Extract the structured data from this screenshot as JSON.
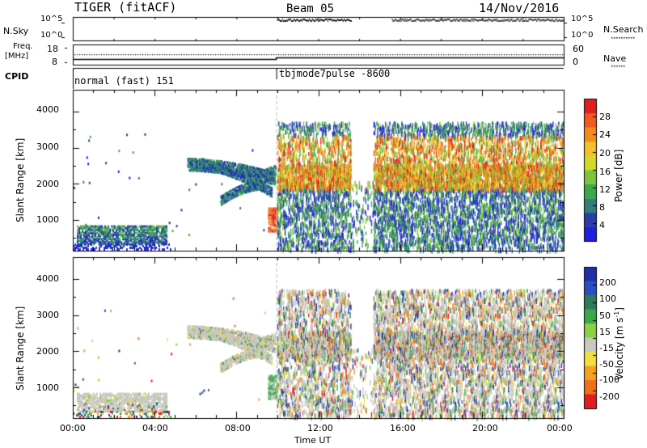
{
  "header": {
    "radar": "TIGER (fitACF)",
    "beam": "Beam 05",
    "date": "14/Nov/2016"
  },
  "top_panels": {
    "nsky_label": "N.Sky",
    "nsearch_label": "N.Search",
    "noise_ticks": [
      "10^5",
      "10^0"
    ],
    "freq_label": "Freq.",
    "freq_unit": "[MHz]",
    "freq_ticks": [
      "18",
      "8"
    ],
    "nave_label": "Nave",
    "nave_ticks": [
      "60",
      "0"
    ],
    "cpid_label": "CPID",
    "cpid_segments": [
      "normal (fast) 151",
      "tbjmode7pulse  -8600"
    ]
  },
  "chart_data": [
    {
      "type": "heatmap",
      "name": "power",
      "ylabel": "Slant Range [km]",
      "ylim": [
        150,
        4600
      ],
      "yticks": [
        1000,
        2000,
        3000,
        4000
      ],
      "xlim": [
        0,
        24
      ],
      "xticks": [
        "00:00",
        "04:00",
        "08:00",
        "12:00",
        "16:00",
        "20:00",
        "00:00"
      ],
      "colorbar": {
        "label": "Power [dB]",
        "ticks": [
          "4",
          "8",
          "12",
          "16",
          "20",
          "24",
          "28"
        ],
        "colors": [
          "#1f1fe0",
          "#2a3ca8",
          "#2f7f7c",
          "#3ca84e",
          "#7cc43c",
          "#d4d82a",
          "#f2c02a",
          "#f58b1e",
          "#f05a1e",
          "#e01e1e"
        ]
      }
    },
    {
      "type": "heatmap",
      "name": "velocity",
      "ylabel": "Slant Range [km]",
      "ylim": [
        150,
        4600
      ],
      "yticks": [
        1000,
        2000,
        3000,
        4000
      ],
      "xlim": [
        0,
        24
      ],
      "xticks": [
        "00:00",
        "04:00",
        "08:00",
        "12:00",
        "16:00",
        "20:00",
        "00:00"
      ],
      "xlabel": "Time UT",
      "colorbar": {
        "label": "Velocity [m s",
        "label_sup": "-1",
        "label_end": "]",
        "ticks": [
          "200",
          "100",
          "50",
          "15",
          "-15",
          "-50",
          "-100",
          "-200"
        ],
        "colors": [
          "#1e2fa8",
          "#2a4fc0",
          "#2e7a5a",
          "#3ca84e",
          "#8ad240",
          "#c8c8c0",
          "#f0e040",
          "#f5a020",
          "#f07020",
          "#e02020"
        ]
      }
    }
  ]
}
